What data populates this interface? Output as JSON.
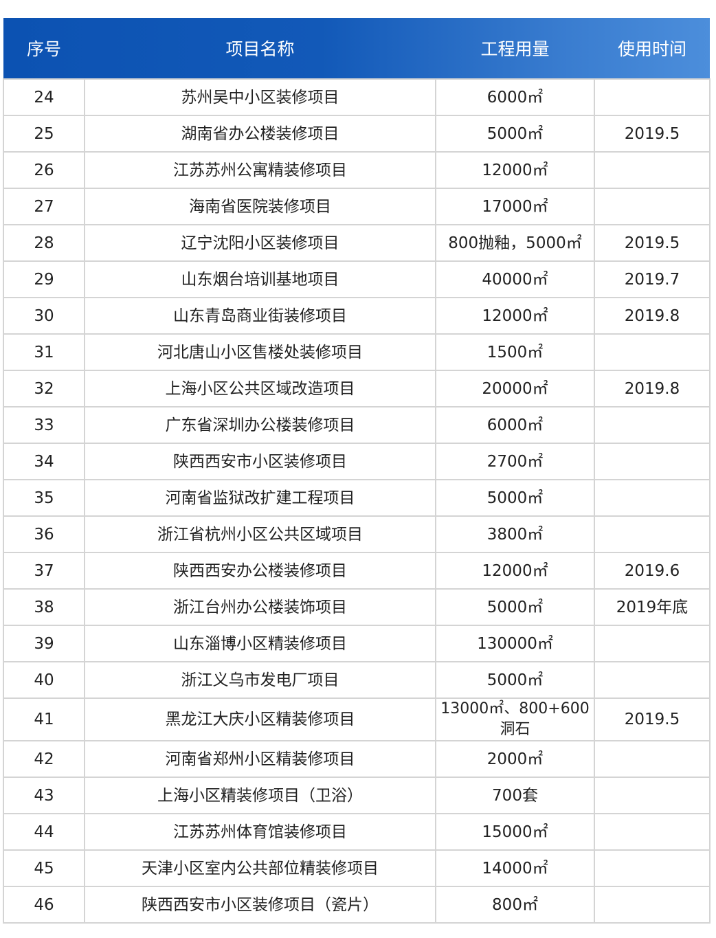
{
  "headers": [
    "序号",
    "项目名称",
    "工程用量",
    "使用时间"
  ],
  "colors": {
    "header_start": "#0c52b2",
    "header_end": "#4c8edb",
    "border": "#d4d4d4"
  },
  "rows": [
    {
      "no": "24",
      "name": "苏州吴中小区装修项目",
      "qty": "6000㎡",
      "time": ""
    },
    {
      "no": "25",
      "name": "湖南省办公楼装修项目",
      "qty": "5000㎡",
      "time": "2019.5"
    },
    {
      "no": "26",
      "name": "江苏苏州公寓精装修项目",
      "qty": "12000㎡",
      "time": ""
    },
    {
      "no": "27",
      "name": "海南省医院装修项目",
      "qty": "17000㎡",
      "time": ""
    },
    {
      "no": "28",
      "name": "辽宁沈阳小区装修项目",
      "qty": "800抛釉，5000㎡",
      "time": "2019.5"
    },
    {
      "no": "29",
      "name": "山东烟台培训基地项目",
      "qty": "40000㎡",
      "time": "2019.7"
    },
    {
      "no": "30",
      "name": "山东青岛商业街装修项目",
      "qty": "12000㎡",
      "time": "2019.8"
    },
    {
      "no": "31",
      "name": "河北唐山小区售楼处装修项目",
      "qty": "1500㎡",
      "time": ""
    },
    {
      "no": "32",
      "name": "上海小区公共区域改造项目",
      "qty": "20000㎡",
      "time": "2019.8"
    },
    {
      "no": "33",
      "name": "广东省深圳办公楼装修项目",
      "qty": "6000㎡",
      "time": ""
    },
    {
      "no": "34",
      "name": "陕西西安市小区装修项目",
      "qty": "2700㎡",
      "time": ""
    },
    {
      "no": "35",
      "name": "河南省监狱改扩建工程项目",
      "qty": "5000㎡",
      "time": ""
    },
    {
      "no": "36",
      "name": "浙江省杭州小区公共区域项目",
      "qty": "3800㎡",
      "time": ""
    },
    {
      "no": "37",
      "name": "陕西西安办公楼装修项目",
      "qty": "12000㎡",
      "time": "2019.6"
    },
    {
      "no": "38",
      "name": "浙江台州办公楼装饰项目",
      "qty": "5000㎡",
      "time": "2019年底"
    },
    {
      "no": "39",
      "name": "山东淄博小区精装修项目",
      "qty": "130000㎡",
      "time": ""
    },
    {
      "no": "40",
      "name": "浙江义乌市发电厂项目",
      "qty": "5000㎡",
      "time": ""
    },
    {
      "no": "41",
      "name": "黑龙江大庆小区精装修项目",
      "qty": "13000㎡、800+600洞石",
      "time": "2019.5"
    },
    {
      "no": "42",
      "name": "河南省郑州小区精装修项目",
      "qty": "2000㎡",
      "time": ""
    },
    {
      "no": "43",
      "name": "上海小区精装修项目（卫浴）",
      "qty": "700套",
      "time": ""
    },
    {
      "no": "44",
      "name": "江苏苏州体育馆装修项目",
      "qty": "15000㎡",
      "time": ""
    },
    {
      "no": "45",
      "name": "天津小区室内公共部位精装修项目",
      "qty": "14000㎡",
      "time": ""
    },
    {
      "no": "46",
      "name": "陕西西安市小区装修项目（瓷片）",
      "qty": "800㎡",
      "time": ""
    }
  ]
}
